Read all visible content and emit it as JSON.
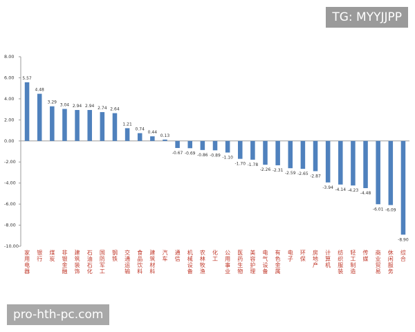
{
  "watermark_top": "TG: MYYJJPP",
  "watermark_bottom": "pro-hth-pc.com",
  "colors": {
    "bar": "#4f81bd",
    "category_label": "#c0392b",
    "axis": "#9a9a9a",
    "text": "#333333"
  },
  "chart_data": {
    "type": "bar",
    "title": "",
    "xlabel": "",
    "ylabel": "",
    "ylim": [
      -10,
      8
    ],
    "yticks": [
      "8.00",
      "6.00",
      "4.00",
      "2.00",
      "0.00",
      "-2.00",
      "-4.00",
      "-6.00",
      "-8.00",
      "-10.00"
    ],
    "grid": false,
    "legend": "none",
    "categories": [
      "家用电器",
      "银行",
      "煤炭",
      "非银金融",
      "建筑装饰",
      "石油石化",
      "国防军工",
      "钢铁",
      "交通运输",
      "食品饮料",
      "建筑材料",
      "汽车",
      "通信",
      "机械设备",
      "农林牧渔",
      "化工",
      "公用事业",
      "医药生物",
      "美容护理",
      "电气设备",
      "有色金属",
      "电子",
      "环保",
      "房地产",
      "计算机",
      "纺织服装",
      "轻工制造",
      "传媒",
      "商业贸易",
      "休闲服务",
      "综合"
    ],
    "values": [
      5.57,
      4.48,
      3.29,
      3.04,
      2.94,
      2.94,
      2.74,
      2.64,
      1.21,
      0.74,
      0.44,
      0.13,
      -0.67,
      -0.69,
      -0.86,
      -0.89,
      -1.1,
      -1.7,
      -1.78,
      -2.26,
      -2.31,
      -2.59,
      -2.65,
      -2.87,
      -3.94,
      -4.14,
      -4.23,
      -4.48,
      -6.01,
      -6.09,
      -8.9
    ],
    "data_labels": [
      "5.57",
      "4.48",
      "3.29",
      "3.04",
      "2.94",
      "2.94",
      "2.74",
      "2.64",
      "1.21",
      "0.74",
      "0.44",
      "0.13",
      "-0.67",
      "-0.69",
      "-0.86",
      "-0.89",
      "-1.10",
      "-1.70",
      "-1.78",
      "-2.26",
      "-2.31",
      "-2.59",
      "-2.65",
      "-2.87",
      "-3.94",
      "-4.14",
      "-4.23",
      "-4.48",
      "-6.01",
      "-6.09",
      "-8.90"
    ]
  }
}
